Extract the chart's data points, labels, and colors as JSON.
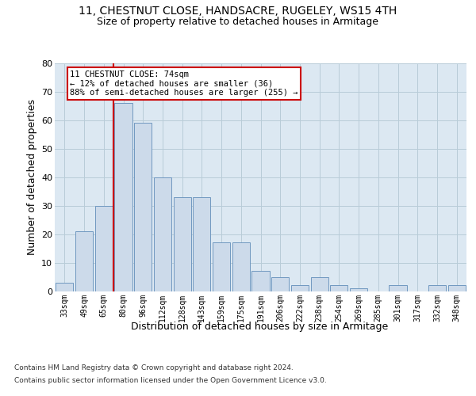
{
  "title1": "11, CHESTNUT CLOSE, HANDSACRE, RUGELEY, WS15 4TH",
  "title2": "Size of property relative to detached houses in Armitage",
  "xlabel": "Distribution of detached houses by size in Armitage",
  "ylabel": "Number of detached properties",
  "footnote1": "Contains HM Land Registry data © Crown copyright and database right 2024.",
  "footnote2": "Contains public sector information licensed under the Open Government Licence v3.0.",
  "bin_labels": [
    "33sqm",
    "49sqm",
    "65sqm",
    "80sqm",
    "96sqm",
    "112sqm",
    "128sqm",
    "143sqm",
    "159sqm",
    "175sqm",
    "191sqm",
    "206sqm",
    "222sqm",
    "238sqm",
    "254sqm",
    "269sqm",
    "285sqm",
    "301sqm",
    "317sqm",
    "332sqm",
    "348sqm"
  ],
  "bar_values": [
    3,
    21,
    30,
    66,
    59,
    40,
    33,
    33,
    17,
    17,
    7,
    5,
    2,
    5,
    2,
    1,
    0,
    2,
    0,
    2,
    2
  ],
  "bar_color": "#ccdaea",
  "bar_edge_color": "#7098c0",
  "vline_color": "#cc0000",
  "vline_x": 2.5,
  "annotation_line1": "11 CHESTNUT CLOSE: 74sqm",
  "annotation_line2": "← 12% of detached houses are smaller (36)",
  "annotation_line3": "88% of semi-detached houses are larger (255) →",
  "annotation_box_facecolor": "white",
  "annotation_box_edgecolor": "#cc0000",
  "ylim": [
    0,
    80
  ],
  "yticks": [
    0,
    10,
    20,
    30,
    40,
    50,
    60,
    70,
    80
  ],
  "grid_color": "#b8ccd8",
  "bg_color": "#dce8f2",
  "title1_fontsize": 10,
  "title2_fontsize": 9,
  "ylabel_fontsize": 9,
  "xlabel_fontsize": 9,
  "tick_fontsize": 8,
  "xtick_fontsize": 7
}
